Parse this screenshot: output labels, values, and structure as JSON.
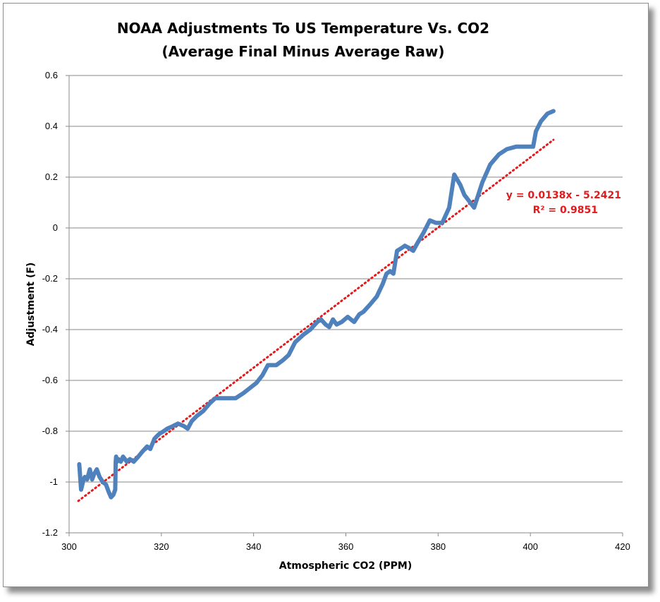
{
  "chart_data": {
    "type": "line",
    "title": "NOAA Adjustments To US Temperature Vs. CO2",
    "subtitle": "(Average Final Minus Average Raw)",
    "xlabel": "Atmospheric CO2 (PPM)",
    "ylabel": "Adjustment (F)",
    "xlim": [
      300,
      420
    ],
    "ylim": [
      -1.2,
      0.6
    ],
    "x_ticks": [
      300,
      320,
      340,
      360,
      380,
      400,
      420
    ],
    "y_ticks": [
      -1.2,
      -1,
      -0.8,
      -0.6,
      -0.4,
      -0.2,
      0,
      0.2,
      0.4,
      0.6
    ],
    "x_tick_labels": [
      "300",
      "320",
      "340",
      "360",
      "380",
      "400",
      "420"
    ],
    "y_tick_labels": [
      "-1.2",
      "-1",
      "-0.8",
      "-0.6",
      "-0.4",
      "-0.2",
      "0",
      "0.2",
      "0.4",
      "0.6"
    ],
    "grid": "horizontal",
    "series": [
      {
        "color": "#4f81bd",
        "x": [
          302.2,
          302.6,
          303.0,
          303.4,
          303.9,
          304.5,
          305.0,
          305.4,
          306.0,
          306.6,
          307.3,
          308.0,
          308.6,
          309.1,
          309.6,
          310.0,
          310.1,
          310.2,
          310.4,
          310.7,
          311.2,
          311.7,
          312.1,
          312.5,
          313.2,
          314.0,
          315.0,
          315.9,
          316.9,
          317.6,
          318.5,
          319.0,
          319.6,
          320.5,
          321.3,
          322.5,
          323.6,
          324.9,
          325.7,
          326.6,
          327.7,
          329.1,
          330.5,
          331.7,
          333.0,
          334.6,
          336.1,
          337.8,
          339.2,
          340.6,
          341.9,
          343.1,
          344.9,
          346.4,
          347.6,
          349.0,
          350.8,
          352.3,
          353.8,
          354.6,
          355.6,
          356.4,
          357.2,
          358.0,
          359.1,
          360.4,
          361.8,
          362.9,
          363.8,
          365.3,
          366.7,
          368.0,
          368.8,
          369.6,
          370.3,
          371.1,
          372.0,
          372.8,
          373.8,
          374.6,
          375.5,
          376.8,
          378.2,
          379.5,
          380.9,
          382.4,
          383.5,
          384.8,
          385.7,
          387.8,
          389.6,
          391.3,
          393.2,
          394.9,
          396.9,
          398.7,
          400.6,
          401.2,
          402.3,
          403.7,
          405.0
        ],
        "y": [
          -0.93,
          -1.03,
          -1.0,
          -0.98,
          -0.99,
          -0.95,
          -0.99,
          -0.97,
          -0.95,
          -0.98,
          -1.0,
          -1.01,
          -1.04,
          -1.06,
          -1.05,
          -1.03,
          -0.92,
          -0.9,
          -0.92,
          -0.91,
          -0.92,
          -0.9,
          -0.91,
          -0.92,
          -0.91,
          -0.92,
          -0.9,
          -0.88,
          -0.86,
          -0.87,
          -0.83,
          -0.82,
          -0.81,
          -0.8,
          -0.79,
          -0.78,
          -0.77,
          -0.78,
          -0.79,
          -0.76,
          -0.74,
          -0.72,
          -0.69,
          -0.67,
          -0.67,
          -0.67,
          -0.67,
          -0.65,
          -0.63,
          -0.61,
          -0.58,
          -0.54,
          -0.54,
          -0.52,
          -0.5,
          -0.45,
          -0.42,
          -0.4,
          -0.37,
          -0.36,
          -0.38,
          -0.39,
          -0.36,
          -0.38,
          -0.37,
          -0.35,
          -0.37,
          -0.34,
          -0.33,
          -0.3,
          -0.27,
          -0.22,
          -0.18,
          -0.17,
          -0.18,
          -0.09,
          -0.08,
          -0.07,
          -0.08,
          -0.09,
          -0.06,
          -0.02,
          0.03,
          0.02,
          0.02,
          0.08,
          0.21,
          0.17,
          0.13,
          0.08,
          0.18,
          0.25,
          0.29,
          0.31,
          0.32,
          0.32,
          0.32,
          0.38,
          0.42,
          0.45,
          0.46
        ]
      }
    ],
    "trendline": {
      "type": "linear",
      "color": "#e31a1c",
      "slope": 0.0138,
      "intercept": -5.2421,
      "x_range": [
        302,
        405
      ],
      "equation_label": "y = 0.0138x - 5.2421",
      "r2_label": "R² = 0.9851"
    }
  }
}
